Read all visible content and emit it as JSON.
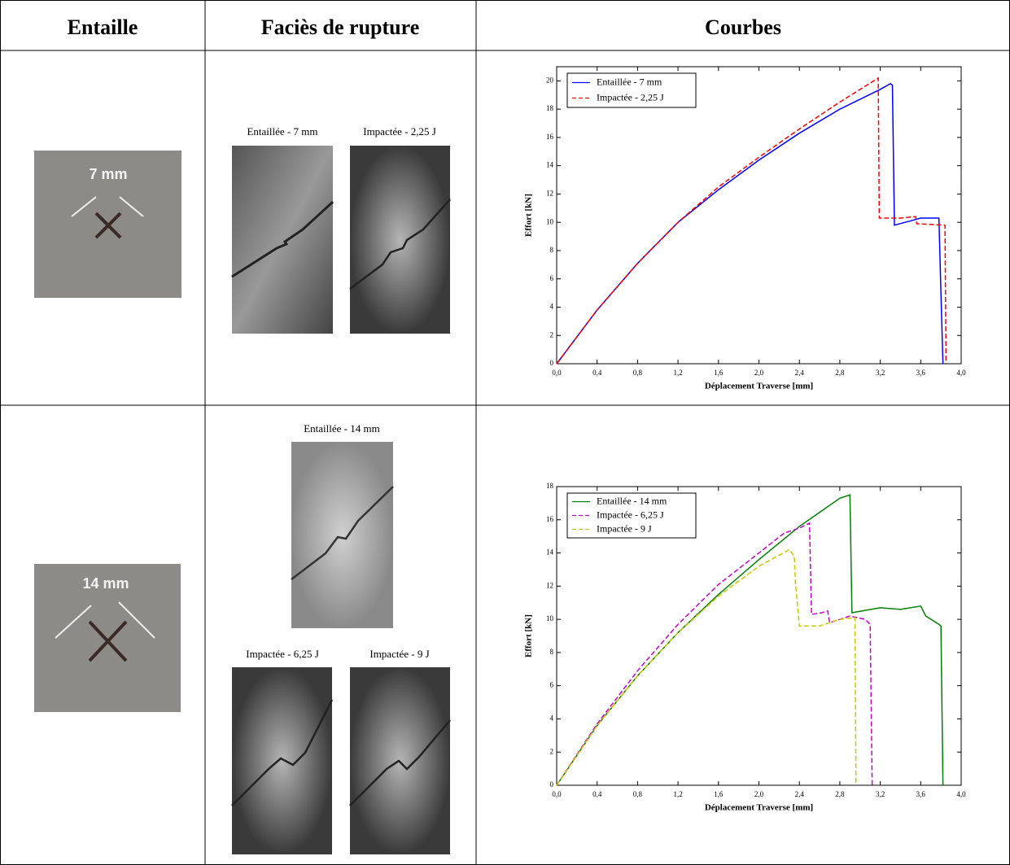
{
  "table": {
    "headers": [
      "Entaille",
      "Faciès de rupture",
      "Courbes"
    ],
    "rows": [
      {
        "notch_label": "7 mm",
        "photos": [
          {
            "caption": "Entaillée - 7 mm"
          },
          {
            "caption": "Impactée - 2,25 J"
          }
        ],
        "chart": {
          "type": "line",
          "xlabel": "Déplacement Traverse [mm]",
          "ylabel": "Effort [kN]",
          "xlim": [
            0,
            4
          ],
          "ylim": [
            0,
            21
          ],
          "xticks": [
            {
              "value": 0,
              "label": "0,0"
            },
            {
              "value": 0.4,
              "label": "0,4"
            },
            {
              "value": 0.8,
              "label": "0,8"
            },
            {
              "value": 1.2,
              "label": "1,2"
            },
            {
              "value": 1.6,
              "label": "1,6"
            },
            {
              "value": 2.0,
              "label": "2,0"
            },
            {
              "value": 2.4,
              "label": "2,4"
            },
            {
              "value": 2.8,
              "label": "2,8"
            },
            {
              "value": 3.2,
              "label": "3,2"
            },
            {
              "value": 3.6,
              "label": "3,6"
            },
            {
              "value": 4.0,
              "label": "4,0"
            }
          ],
          "yticks": [
            0,
            2,
            4,
            6,
            8,
            10,
            12,
            14,
            16,
            18,
            20
          ],
          "legend": "upper left",
          "series": [
            {
              "name": "Entaillée - 7 mm",
              "color": "#0000ff",
              "linestyle": "solid",
              "x": [
                0,
                0.4,
                0.8,
                1.2,
                1.6,
                2.0,
                2.4,
                2.8,
                3.2,
                3.3,
                3.32,
                3.34,
                3.5,
                3.6,
                3.78,
                3.8,
                3.82
              ],
              "values": [
                0,
                3.8,
                7.1,
                10.0,
                12.3,
                14.4,
                16.3,
                18.0,
                19.4,
                19.8,
                19.7,
                9.8,
                10.1,
                10.3,
                10.3,
                5,
                0
              ]
            },
            {
              "name": "Impactée - 2,25 J",
              "color": "#ff0000",
              "linestyle": "dashed",
              "x": [
                0,
                0.4,
                0.8,
                1.2,
                1.6,
                2.0,
                2.4,
                2.8,
                3.18,
                3.19,
                3.4,
                3.55,
                3.56,
                3.84,
                3.85
              ],
              "values": [
                0,
                3.8,
                7.1,
                10.0,
                12.5,
                14.6,
                16.6,
                18.5,
                20.2,
                10.3,
                10.3,
                10.4,
                9.9,
                9.8,
                0
              ]
            }
          ]
        }
      },
      {
        "notch_label": "14 mm",
        "photos": [
          {
            "caption": "Entaillée - 14 mm"
          },
          {
            "caption": "Impactée - 6,25 J"
          },
          {
            "caption": "Impactée - 9 J"
          }
        ],
        "chart": {
          "type": "line",
          "xlabel": "Déplacement Traverse [mm]",
          "ylabel": "Effort [kN]",
          "xlim": [
            0,
            4
          ],
          "ylim": [
            0,
            18
          ],
          "xticks": [
            {
              "value": 0,
              "label": "0,0"
            },
            {
              "value": 0.4,
              "label": "0,4"
            },
            {
              "value": 0.8,
              "label": "0,8"
            },
            {
              "value": 1.2,
              "label": "1,2"
            },
            {
              "value": 1.6,
              "label": "1,6"
            },
            {
              "value": 2.0,
              "label": "2,0"
            },
            {
              "value": 2.4,
              "label": "2,4"
            },
            {
              "value": 2.8,
              "label": "2,8"
            },
            {
              "value": 3.2,
              "label": "3,2"
            },
            {
              "value": 3.6,
              "label": "3,6"
            },
            {
              "value": 4.0,
              "label": "4,0"
            }
          ],
          "yticks": [
            0,
            2,
            4,
            6,
            8,
            10,
            12,
            14,
            16,
            18
          ],
          "legend": "upper left",
          "series": [
            {
              "name": "Entaillée - 14 mm",
              "color": "#008000",
              "linestyle": "solid",
              "x": [
                0,
                0.4,
                0.8,
                1.2,
                1.6,
                2.0,
                2.4,
                2.8,
                2.9,
                2.92,
                3.2,
                3.4,
                3.6,
                3.65,
                3.78,
                3.8,
                3.82
              ],
              "values": [
                0,
                3.6,
                6.6,
                9.2,
                11.5,
                13.6,
                15.6,
                17.3,
                17.5,
                10.4,
                10.7,
                10.6,
                10.8,
                10.2,
                9.7,
                9.6,
                0
              ]
            },
            {
              "name": "Impactée - 6,25 J",
              "color": "#cc00cc",
              "linestyle": "dashed",
              "x": [
                0,
                0.4,
                0.8,
                1.2,
                1.6,
                2.0,
                2.25,
                2.4,
                2.5,
                2.52,
                2.62,
                2.68,
                2.7,
                2.9,
                3.05,
                3.1,
                3.12
              ],
              "values": [
                0,
                3.7,
                6.9,
                9.7,
                12.1,
                14.0,
                15.2,
                15.5,
                15.8,
                10.3,
                10.4,
                10.5,
                9.8,
                10.2,
                10.0,
                9.7,
                0
              ]
            },
            {
              "name": "Impactée - 9 J",
              "color": "#c8c800",
              "linestyle": "dashed",
              "x": [
                0,
                0.4,
                0.8,
                1.2,
                1.6,
                2.0,
                2.3,
                2.35,
                2.36,
                2.4,
                2.6,
                2.8,
                2.95,
                2.96
              ],
              "values": [
                0,
                3.6,
                6.6,
                9.2,
                11.4,
                13.2,
                14.2,
                13.8,
                12.3,
                9.6,
                9.6,
                10.0,
                10.1,
                0
              ]
            }
          ]
        }
      }
    ]
  }
}
